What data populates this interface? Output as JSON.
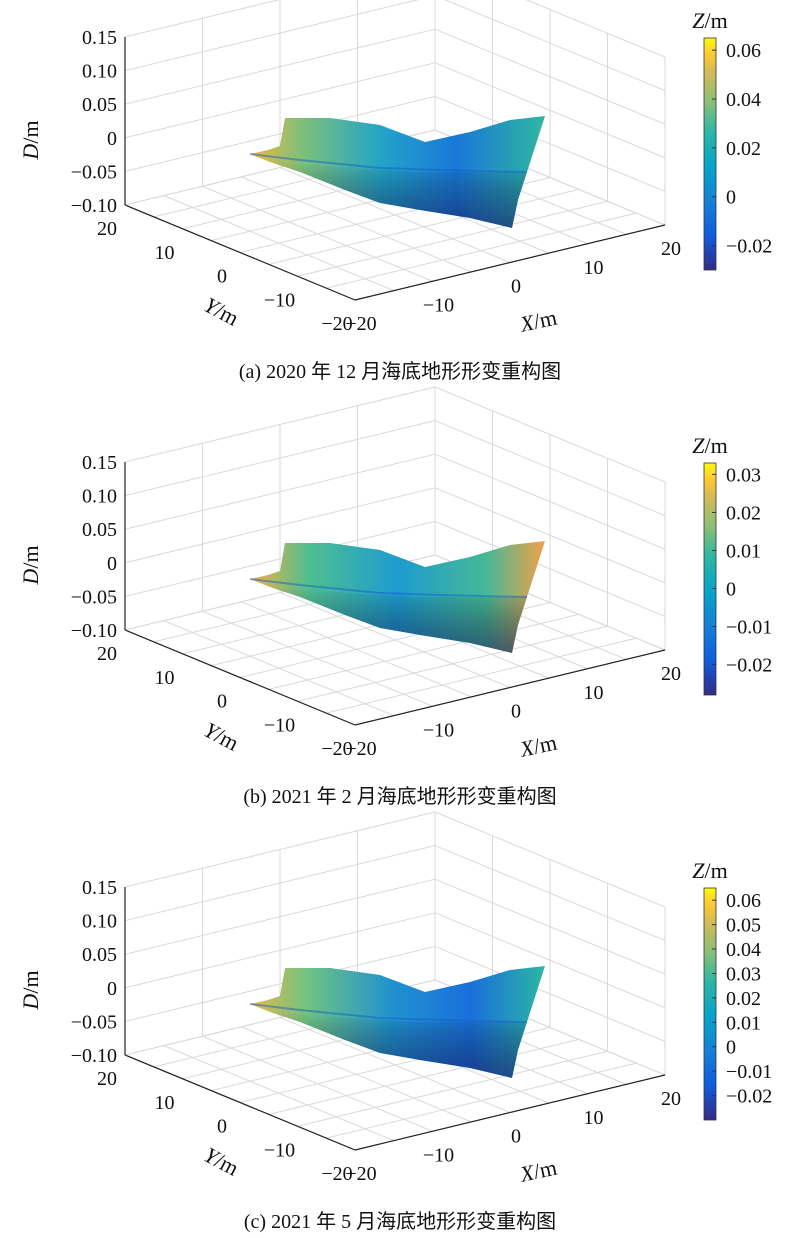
{
  "chart_data": [
    {
      "type": "surface",
      "caption": "(a) 2020 年 12 月海底地形形变重构图",
      "xlabel": "X/m",
      "ylabel": "Y/m",
      "zlabel": "D/m",
      "xlim": [
        -20,
        20
      ],
      "ylim": [
        -20,
        20
      ],
      "zlim": [
        -0.1,
        0.15
      ],
      "xticks": [
        "−20",
        "−10",
        "0",
        "10",
        "20"
      ],
      "yticks": [
        "−20",
        "−10",
        "0",
        "10",
        "20"
      ],
      "zticks": [
        "−0.10",
        "−0.05",
        "0",
        "0.05",
        "0.10",
        "0.15"
      ],
      "colorbar": {
        "label": "Z/m",
        "range": [
          -0.03,
          0.065
        ],
        "ticks": [
          -0.02,
          0,
          0.02,
          0.04,
          0.06
        ],
        "tick_labels": [
          "−0.02",
          "0",
          "0.02",
          "0.04",
          "0.06"
        ]
      },
      "grid": true
    },
    {
      "type": "surface",
      "caption": "(b) 2021 年 2 月海底地形形变重构图",
      "xlabel": "X/m",
      "ylabel": "Y/m",
      "zlabel": "D/m",
      "xlim": [
        -20,
        20
      ],
      "ylim": [
        -20,
        20
      ],
      "zlim": [
        -0.1,
        0.15
      ],
      "xticks": [
        "−20",
        "−10",
        "0",
        "10",
        "20"
      ],
      "yticks": [
        "−20",
        "−10",
        "0",
        "10",
        "20"
      ],
      "zticks": [
        "−0.10",
        "−0.05",
        "0",
        "0.05",
        "0.10",
        "0.15"
      ],
      "colorbar": {
        "label": "Z/m",
        "range": [
          -0.028,
          0.033
        ],
        "ticks": [
          -0.02,
          -0.01,
          0,
          0.01,
          0.02,
          0.03
        ],
        "tick_labels": [
          "−0.02",
          "−0.01",
          "0",
          "0.01",
          "0.02",
          "0.03"
        ]
      },
      "grid": true
    },
    {
      "type": "surface",
      "caption": "(c) 2021 年 5 月海底地形形变重构图",
      "xlabel": "X/m",
      "ylabel": "Y/m",
      "zlabel": "D/m",
      "xlim": [
        -20,
        20
      ],
      "ylim": [
        -20,
        20
      ],
      "zlim": [
        -0.1,
        0.15
      ],
      "xticks": [
        "−20",
        "−10",
        "0",
        "10",
        "20"
      ],
      "yticks": [
        "−20",
        "−10",
        "0",
        "10",
        "20"
      ],
      "zticks": [
        "−0.10",
        "−0.05",
        "0",
        "0.05",
        "0.10",
        "0.15"
      ],
      "colorbar": {
        "label": "Z/m",
        "range": [
          -0.03,
          0.065
        ],
        "ticks": [
          -0.02,
          -0.01,
          0,
          0.01,
          0.02,
          0.03,
          0.04,
          0.05,
          0.06
        ],
        "tick_labels": [
          "−0.02",
          "−0.01",
          "0",
          "0.01",
          "0.02",
          "0.03",
          "0.04",
          "0.05",
          "0.06"
        ]
      },
      "grid": true
    }
  ]
}
